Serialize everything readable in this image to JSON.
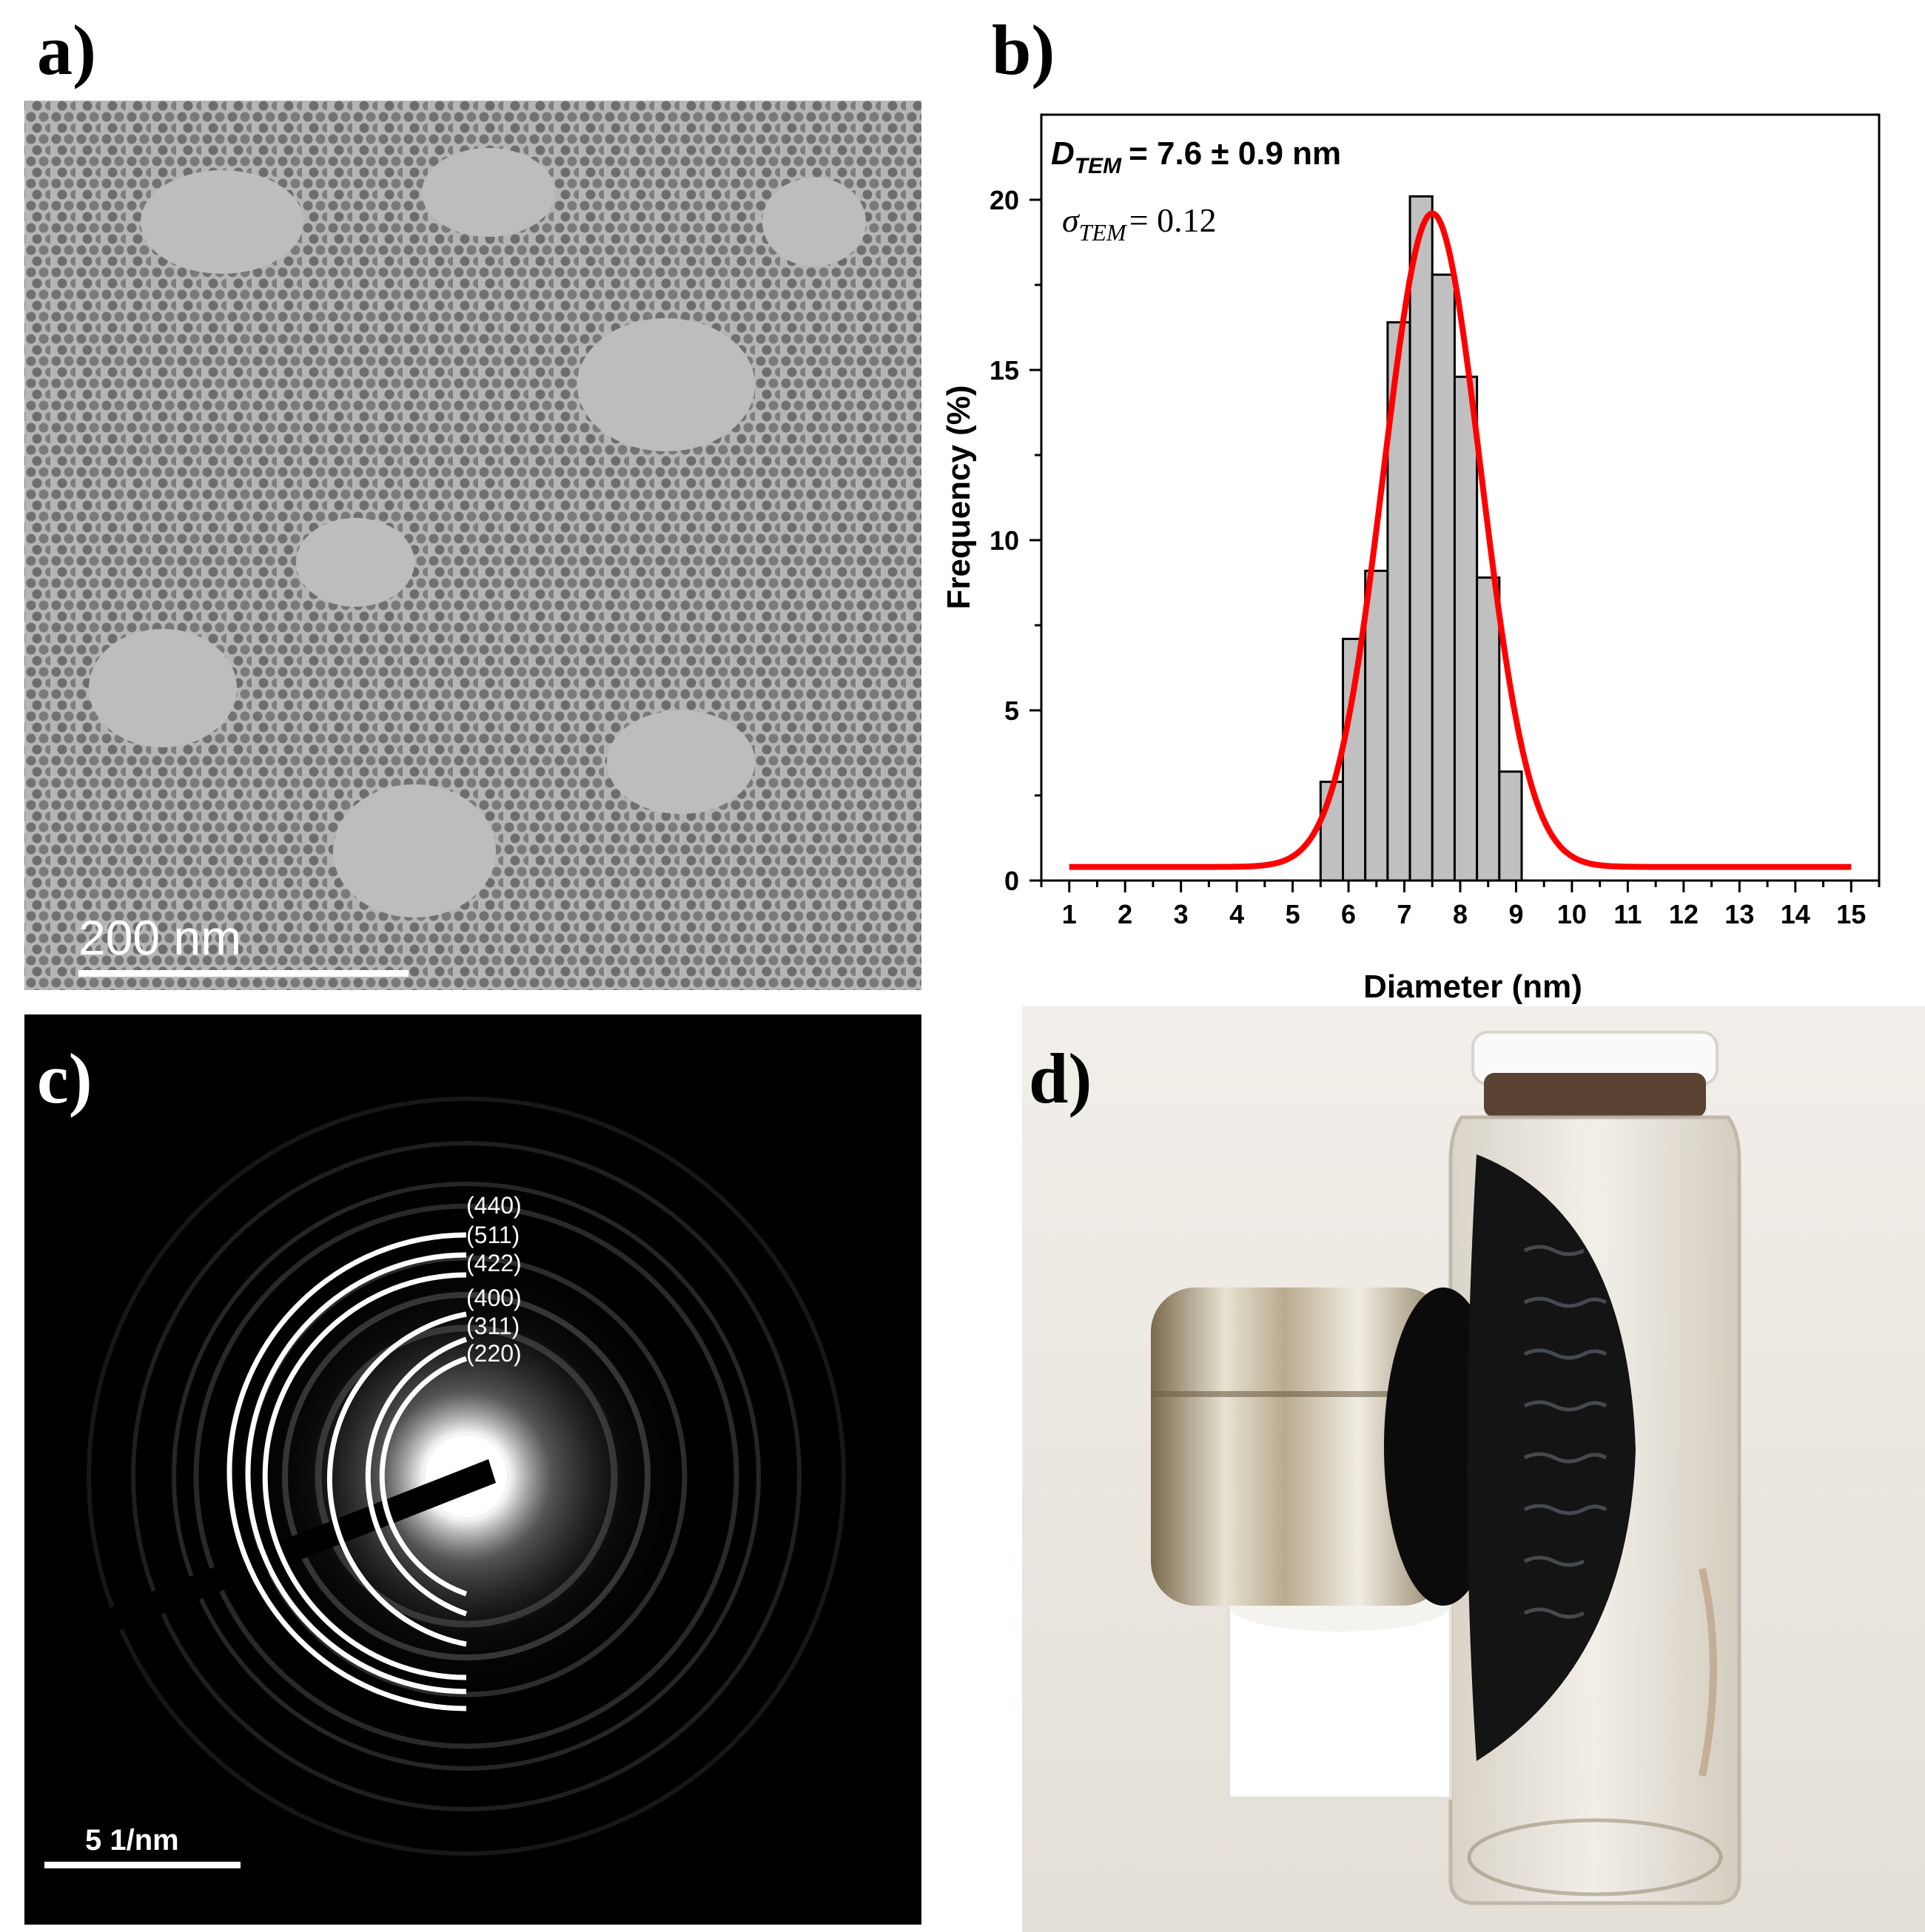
{
  "colors": {
    "tem_background": "#b5b5b5",
    "bar_fill": "#c0c0c0",
    "fit_curve": "#ff0000",
    "saed_background": "#000000",
    "annotation_white": "#ffffff"
  },
  "panel_a": {
    "label": "a)",
    "scale_bar": "200 nm"
  },
  "panel_b": {
    "label": "b)",
    "annotation_d_symbol": "D",
    "annotation_d_subscript": "TEM",
    "annotation_d_value": "= 7.6 ± 0.9 nm",
    "annotation_sigma_symbol": "σ",
    "annotation_sigma_subscript": "TEM",
    "annotation_sigma_value": "= 0.12"
  },
  "chart_data": {
    "type": "bar",
    "xlabel": "Diameter (nm)",
    "ylabel": "Frequency (%)",
    "xlim": [
      0.5,
      15.5
    ],
    "ylim": [
      0,
      22.5
    ],
    "x_ticks": [
      1,
      2,
      3,
      4,
      5,
      6,
      7,
      8,
      9,
      10,
      11,
      12,
      13,
      14,
      15
    ],
    "y_ticks": [
      0,
      5,
      10,
      15,
      20
    ],
    "bin_width": 0.4,
    "bins": [
      {
        "center": 5.7,
        "value": 2.9
      },
      {
        "center": 6.1,
        "value": 7.1
      },
      {
        "center": 6.5,
        "value": 9.1
      },
      {
        "center": 6.9,
        "value": 16.4
      },
      {
        "center": 7.3,
        "value": 20.1
      },
      {
        "center": 7.7,
        "value": 17.8
      },
      {
        "center": 8.1,
        "value": 14.8
      },
      {
        "center": 8.5,
        "value": 8.9
      },
      {
        "center": 8.9,
        "value": 3.2
      }
    ],
    "fit": {
      "type": "gaussian",
      "center": 7.5,
      "sigma": 0.87,
      "amplitude": 19.2,
      "baseline": 0.4,
      "x_range": [
        1,
        15
      ]
    },
    "grid": false
  },
  "panel_c": {
    "label": "c)",
    "scale_bar": "5 1/nm",
    "rings": [
      "(440)",
      "(511)",
      "(422)",
      "(400)",
      "(311)",
      "(220)"
    ]
  },
  "panel_d": {
    "label": "d)"
  }
}
